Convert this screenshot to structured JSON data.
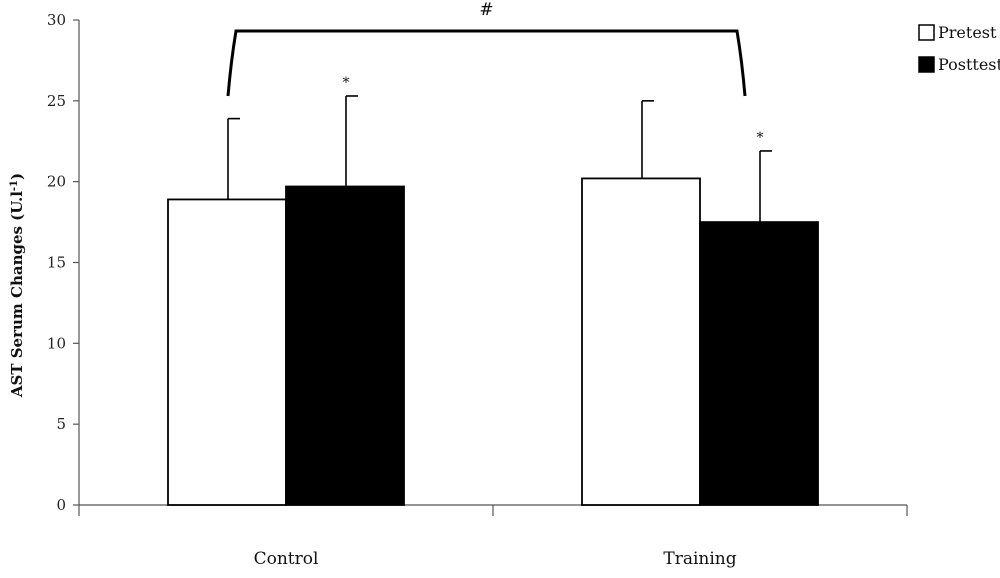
{
  "chart_data": {
    "type": "bar",
    "categories": [
      "Control",
      "Training"
    ],
    "series": [
      {
        "name": "Pretest",
        "values": [
          18.9,
          20.2
        ],
        "error": [
          5.0,
          4.8
        ],
        "color": "#ffffff"
      },
      {
        "name": "Posttest",
        "values": [
          19.7,
          17.5
        ],
        "error": [
          5.6,
          4.4
        ],
        "color": "#000000"
      }
    ],
    "ylabel": "AST Serum Changes (U.l",
    "ylabel_sup": "-1",
    "ylabel_close": ")",
    "ylim": [
      0,
      30
    ],
    "yticks": [
      0,
      5,
      10,
      15,
      20,
      25,
      30
    ],
    "legend_position": "top-right",
    "annotations": {
      "posttest_marker": "*",
      "group_marker": "#"
    }
  }
}
